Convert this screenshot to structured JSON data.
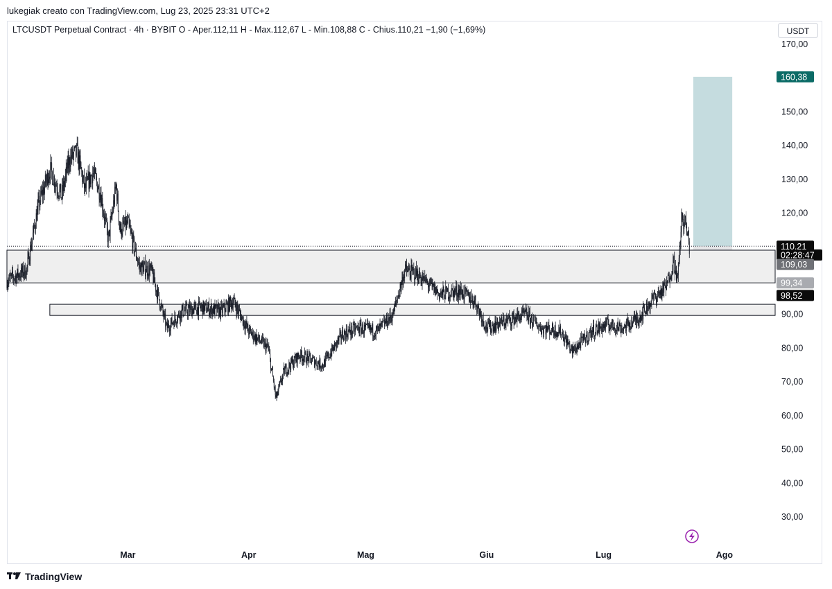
{
  "header": {
    "credit": "lukegiak creato con TradingView.com, Lug 23, 2025 23:31 UTC+2",
    "legend": "LTCUSDT Perpetual Contract · 4h · BYBIT  O - Aper.112,11  H - Max.112,67  L - Min.108,88  C - Chius.110,21  −1,90 (−1,69%)",
    "currency": "USDT"
  },
  "footer": {
    "logo_icon": "tradingview-logo-icon",
    "brand": "TradingView"
  },
  "colors": {
    "candle": "#131722",
    "target_zone": "#c5dcdf",
    "stop_zone": "#e6e6e8",
    "zone_fill": "#efefef",
    "tag_teal": "#0b6b66",
    "tag_black": "#0b0b0b",
    "tag_gray": "#6f7176",
    "tag_lightgray": "#a9abb0"
  },
  "chart_data": {
    "type": "candlestick",
    "symbol": "LTCUSDT Perpetual Contract",
    "interval": "4h",
    "exchange": "BYBIT",
    "ylim": [
      22,
      172
    ],
    "y_ticks": [
      "170,00",
      "150,00",
      "140,00",
      "130,00",
      "120,00",
      "90,00",
      "80,00",
      "70,00",
      "60,00",
      "50,00",
      "40,00",
      "30,00"
    ],
    "y_tick_values": [
      170,
      150,
      140,
      130,
      120,
      90,
      80,
      70,
      60,
      50,
      40,
      30
    ],
    "x_labels": [
      "Mar",
      "Apr",
      "Mag",
      "Giu",
      "Lug",
      "Ago"
    ],
    "x_label_dates": [
      "2025-03-01",
      "2025-04-01",
      "2025-05-01",
      "2025-06-01",
      "2025-07-01",
      "2025-08-01"
    ],
    "x_range": [
      "2025-01-29",
      "2025-08-14"
    ],
    "price_path": [
      {
        "date": "2025-01-29",
        "price": 100
      },
      {
        "date": "2025-02-03",
        "price": 103
      },
      {
        "date": "2025-02-06",
        "price": 122
      },
      {
        "date": "2025-02-09",
        "price": 133
      },
      {
        "date": "2025-02-12",
        "price": 125
      },
      {
        "date": "2025-02-14",
        "price": 136
      },
      {
        "date": "2025-02-16",
        "price": 138
      },
      {
        "date": "2025-02-18",
        "price": 127
      },
      {
        "date": "2025-02-20",
        "price": 132
      },
      {
        "date": "2025-02-22",
        "price": 126
      },
      {
        "date": "2025-02-24",
        "price": 112
      },
      {
        "date": "2025-02-26",
        "price": 128
      },
      {
        "date": "2025-02-27",
        "price": 115
      },
      {
        "date": "2025-03-01",
        "price": 117
      },
      {
        "date": "2025-03-04",
        "price": 104
      },
      {
        "date": "2025-03-07",
        "price": 103
      },
      {
        "date": "2025-03-11",
        "price": 86
      },
      {
        "date": "2025-03-15",
        "price": 91
      },
      {
        "date": "2025-03-20",
        "price": 92
      },
      {
        "date": "2025-03-25",
        "price": 91
      },
      {
        "date": "2025-03-28",
        "price": 94
      },
      {
        "date": "2025-04-01",
        "price": 85
      },
      {
        "date": "2025-04-06",
        "price": 80
      },
      {
        "date": "2025-04-08",
        "price": 65
      },
      {
        "date": "2025-04-10",
        "price": 73
      },
      {
        "date": "2025-04-14",
        "price": 78
      },
      {
        "date": "2025-04-20",
        "price": 75
      },
      {
        "date": "2025-04-25",
        "price": 84
      },
      {
        "date": "2025-04-29",
        "price": 86
      },
      {
        "date": "2025-05-04",
        "price": 85
      },
      {
        "date": "2025-05-08",
        "price": 90
      },
      {
        "date": "2025-05-11",
        "price": 103
      },
      {
        "date": "2025-05-14",
        "price": 102
      },
      {
        "date": "2025-05-20",
        "price": 96
      },
      {
        "date": "2025-05-25",
        "price": 97
      },
      {
        "date": "2025-05-29",
        "price": 94
      },
      {
        "date": "2025-06-01",
        "price": 86
      },
      {
        "date": "2025-06-06",
        "price": 88
      },
      {
        "date": "2025-06-11",
        "price": 90
      },
      {
        "date": "2025-06-15",
        "price": 86
      },
      {
        "date": "2025-06-20",
        "price": 85
      },
      {
        "date": "2025-06-23",
        "price": 79
      },
      {
        "date": "2025-06-28",
        "price": 85
      },
      {
        "date": "2025-07-02",
        "price": 87
      },
      {
        "date": "2025-07-06",
        "price": 86
      },
      {
        "date": "2025-07-10",
        "price": 89
      },
      {
        "date": "2025-07-14",
        "price": 95
      },
      {
        "date": "2025-07-17",
        "price": 98
      },
      {
        "date": "2025-07-19",
        "price": 106
      },
      {
        "date": "2025-07-20",
        "price": 100
      },
      {
        "date": "2025-07-21",
        "price": 118
      },
      {
        "date": "2025-07-22",
        "price": 117
      },
      {
        "date": "2025-07-23",
        "price": 110.21
      }
    ],
    "zones": [
      {
        "date_from": "2025-01-29",
        "date_to": "2025-08-14",
        "y_low": 99.34,
        "y_high": 109.03
      },
      {
        "date_from": "2025-02-09",
        "date_to": "2025-08-14",
        "y_low": 89.7,
        "y_high": 93
      }
    ],
    "position": {
      "date_from": "2025-07-24",
      "date_to": "2025-08-03",
      "entry": 110.21,
      "target": 160.38,
      "stop": 100.1
    },
    "price_tags": [
      {
        "label": "160,38",
        "value": 160.38,
        "style": "teal"
      },
      {
        "label": "110,21",
        "value": 110.21,
        "style": "black"
      },
      {
        "label": "02:28:47",
        "value": 107.6,
        "style": "black"
      },
      {
        "label": "109,03",
        "value": 104.8,
        "style": "gray"
      },
      {
        "label": "99,34",
        "value": 99.34,
        "style": "lightgray"
      },
      {
        "label": "98,52",
        "value": 95.6,
        "style": "black"
      }
    ],
    "last_price": 110.21,
    "last_price_label": "110,21",
    "countdown": "02:28:47"
  }
}
